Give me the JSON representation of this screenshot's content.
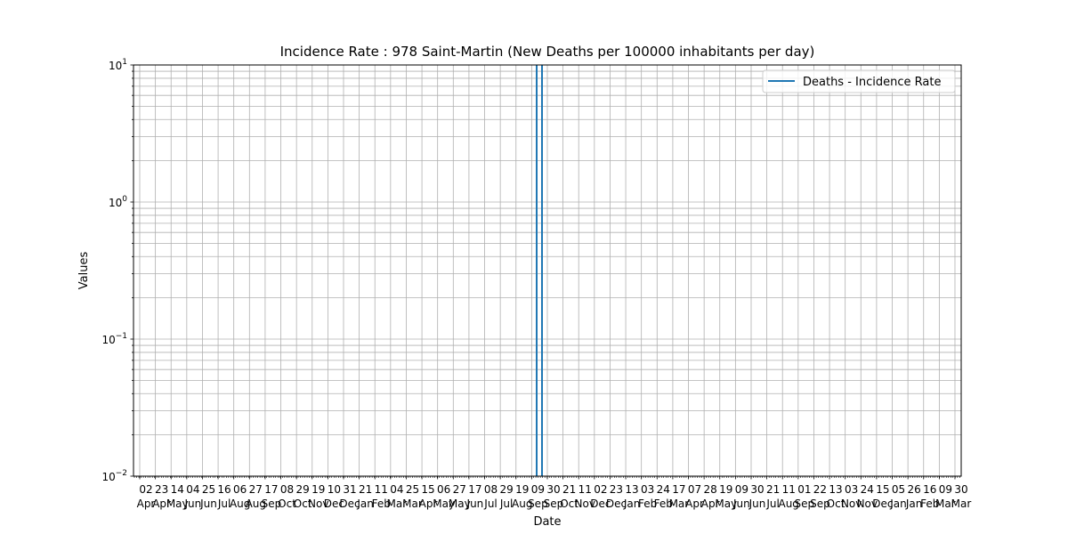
{
  "chart_data": {
    "type": "line",
    "title": "Incidence Rate : 978 Saint-Martin (New Deaths per 100000 inhabitants per day)",
    "xlabel": "Date",
    "ylabel": "Values",
    "yscale": "log",
    "ylim": [
      0.01,
      10
    ],
    "grid": true,
    "legend_position": "upper right",
    "y_ticks": [
      {
        "base": "10",
        "exp": "−2"
      },
      {
        "base": "10",
        "exp": "−1"
      },
      {
        "base": "10",
        "exp": "0"
      },
      {
        "base": "10",
        "exp": "1"
      }
    ],
    "x_ticks": [
      {
        "day": "02",
        "month": "Apr"
      },
      {
        "day": "23",
        "month": "Apr"
      },
      {
        "day": "14",
        "month": "May"
      },
      {
        "day": "04",
        "month": "Jun"
      },
      {
        "day": "25",
        "month": "Jun"
      },
      {
        "day": "16",
        "month": "Jul"
      },
      {
        "day": "06",
        "month": "Aug"
      },
      {
        "day": "27",
        "month": "Aug"
      },
      {
        "day": "17",
        "month": "Sep"
      },
      {
        "day": "08",
        "month": "Oct"
      },
      {
        "day": "29",
        "month": "Oct"
      },
      {
        "day": "19",
        "month": "Nov"
      },
      {
        "day": "10",
        "month": "Dec"
      },
      {
        "day": "31",
        "month": "Dec"
      },
      {
        "day": "21",
        "month": "Jan"
      },
      {
        "day": "11",
        "month": "Feb"
      },
      {
        "day": "04",
        "month": "Mar"
      },
      {
        "day": "25",
        "month": "Mar"
      },
      {
        "day": "15",
        "month": "Apr"
      },
      {
        "day": "06",
        "month": "May"
      },
      {
        "day": "27",
        "month": "May"
      },
      {
        "day": "17",
        "month": "Jun"
      },
      {
        "day": "08",
        "month": "Jul"
      },
      {
        "day": "29",
        "month": "Jul"
      },
      {
        "day": "19",
        "month": "Aug"
      },
      {
        "day": "09",
        "month": "Sep"
      },
      {
        "day": "30",
        "month": "Sep"
      },
      {
        "day": "21",
        "month": "Oct"
      },
      {
        "day": "11",
        "month": "Nov"
      },
      {
        "day": "02",
        "month": "Dec"
      },
      {
        "day": "23",
        "month": "Dec"
      },
      {
        "day": "13",
        "month": "Jan"
      },
      {
        "day": "03",
        "month": "Feb"
      },
      {
        "day": "24",
        "month": "Feb"
      },
      {
        "day": "17",
        "month": "Mar"
      },
      {
        "day": "07",
        "month": "Apr"
      },
      {
        "day": "28",
        "month": "Apr"
      },
      {
        "day": "19",
        "month": "May"
      },
      {
        "day": "09",
        "month": "Jun"
      },
      {
        "day": "30",
        "month": "Jun"
      },
      {
        "day": "21",
        "month": "Jul"
      },
      {
        "day": "11",
        "month": "Aug"
      },
      {
        "day": "01",
        "month": "Sep"
      },
      {
        "day": "22",
        "month": "Sep"
      },
      {
        "day": "13",
        "month": "Oct"
      },
      {
        "day": "03",
        "month": "Nov"
      },
      {
        "day": "24",
        "month": "Nov"
      },
      {
        "day": "15",
        "month": "Dec"
      },
      {
        "day": "05",
        "month": "Jan"
      },
      {
        "day": "26",
        "month": "Jan"
      },
      {
        "day": "16",
        "month": "Feb"
      },
      {
        "day": "09",
        "month": "Mar"
      },
      {
        "day": "30",
        "month": "Mar"
      }
    ],
    "series": [
      {
        "name": "Deaths - Incidence Rate",
        "color": "#1f77b4",
        "spikes": [
          {
            "x_index": 25.32,
            "y": 10
          },
          {
            "x_index": 25.66,
            "y": 10
          }
        ]
      }
    ]
  }
}
